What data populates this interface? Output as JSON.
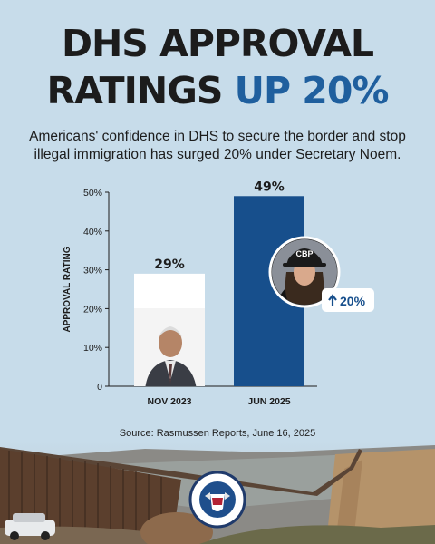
{
  "header": {
    "title_line1": "DHS APPROVAL",
    "title_line2_prefix": "RATINGS ",
    "title_line2_highlight": "UP 20%",
    "subtitle_line1": "Americans' confidence in DHS to secure the border and stop",
    "subtitle_line2": "illegal immigration has surged 20% under Secretary Noem."
  },
  "source": "Source: Rasmussen Reports, June 16, 2025",
  "badge_label": "20%",
  "seal_text": "U.S. DEPARTMENT OF HOMELAND SECURITY",
  "cap_text": "CBP",
  "colors": {
    "title": "#1c1c1c",
    "highlight": "#1f5f9e",
    "bar_2023": "#ffffff",
    "bar_2025": "#174f8c",
    "background": "#c7dcea"
  },
  "chart_data": {
    "type": "bar",
    "categories": [
      "NOV 2023",
      "JUN 2025"
    ],
    "values": [
      29,
      49
    ],
    "data_labels": [
      "29%",
      "49%"
    ],
    "title": "",
    "xlabel": "",
    "ylabel": "APPROVAL RATING",
    "ylim": [
      0,
      50
    ],
    "yticks": [
      0,
      10,
      20,
      30,
      40,
      50
    ],
    "ytick_labels": [
      "0",
      "10%",
      "20%",
      "30%",
      "40%",
      "50%"
    ],
    "grid": false,
    "legend": "none"
  }
}
